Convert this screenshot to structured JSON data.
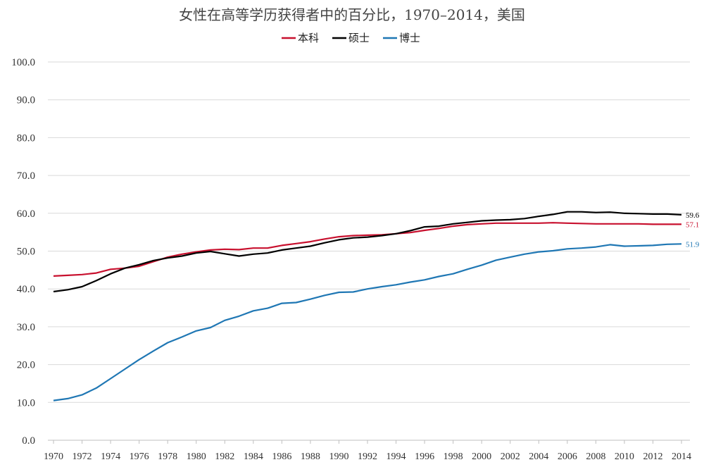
{
  "chart_data": {
    "type": "line",
    "title": "女性在高等学历获得者中的百分比，1970–2014，美国",
    "xlabel": "",
    "ylabel": "",
    "ylim": [
      0,
      100
    ],
    "yticks": [
      "0.0",
      "10.0",
      "20.0",
      "30.0",
      "40.0",
      "50.0",
      "60.0",
      "70.0",
      "80.0",
      "90.0",
      "100.0"
    ],
    "x": [
      1970,
      1971,
      1972,
      1973,
      1974,
      1975,
      1976,
      1977,
      1978,
      1979,
      1980,
      1981,
      1982,
      1983,
      1984,
      1985,
      1986,
      1987,
      1988,
      1989,
      1990,
      1991,
      1992,
      1993,
      1994,
      1995,
      1996,
      1997,
      1998,
      1999,
      2000,
      2001,
      2002,
      2003,
      2004,
      2005,
      2006,
      2007,
      2008,
      2009,
      2010,
      2011,
      2012,
      2013,
      2014
    ],
    "xtick_labels": [
      "1970",
      "1972",
      "1974",
      "1976",
      "1978",
      "1980",
      "1982",
      "1984",
      "1986",
      "1988",
      "1990",
      "1992",
      "1994",
      "1996",
      "1998",
      "2000",
      "2002",
      "2004",
      "2006",
      "2008",
      "2010",
      "2012",
      "2014"
    ],
    "grid": true,
    "legend_position": "top",
    "series": [
      {
        "name": "本科",
        "color": "#c8102e",
        "end_label": "57.1",
        "values": [
          43.4,
          43.6,
          43.8,
          44.2,
          45.2,
          45.5,
          46.0,
          47.2,
          48.4,
          49.2,
          49.8,
          50.3,
          50.5,
          50.4,
          50.8,
          50.8,
          51.5,
          52.0,
          52.5,
          53.2,
          53.8,
          54.1,
          54.2,
          54.3,
          54.6,
          54.9,
          55.5,
          56.0,
          56.6,
          57.0,
          57.2,
          57.4,
          57.4,
          57.4,
          57.4,
          57.5,
          57.4,
          57.3,
          57.2,
          57.2,
          57.2,
          57.2,
          57.1,
          57.1,
          57.1
        ]
      },
      {
        "name": "硕士",
        "color": "#000000",
        "end_label": "59.6",
        "values": [
          39.3,
          39.8,
          40.6,
          42.2,
          44.0,
          45.5,
          46.4,
          47.5,
          48.2,
          48.7,
          49.5,
          49.9,
          49.3,
          48.7,
          49.2,
          49.5,
          50.3,
          50.8,
          51.3,
          52.2,
          53.0,
          53.5,
          53.7,
          54.1,
          54.6,
          55.4,
          56.4,
          56.6,
          57.2,
          57.6,
          58.0,
          58.2,
          58.3,
          58.6,
          59.2,
          59.7,
          60.4,
          60.4,
          60.2,
          60.3,
          60.0,
          59.9,
          59.8,
          59.8,
          59.6
        ]
      },
      {
        "name": "博士",
        "color": "#1f77b4",
        "end_label": "51.9",
        "values": [
          10.5,
          11.0,
          12.0,
          13.8,
          16.3,
          18.8,
          21.3,
          23.6,
          25.8,
          27.3,
          28.9,
          29.8,
          31.7,
          32.8,
          34.2,
          34.9,
          36.2,
          36.4,
          37.3,
          38.3,
          39.1,
          39.2,
          40.0,
          40.6,
          41.1,
          41.8,
          42.4,
          43.3,
          44.0,
          45.2,
          46.3,
          47.6,
          48.4,
          49.2,
          49.8,
          50.1,
          50.6,
          50.8,
          51.1,
          51.7,
          51.3,
          51.4,
          51.5,
          51.8,
          51.9
        ]
      }
    ]
  }
}
